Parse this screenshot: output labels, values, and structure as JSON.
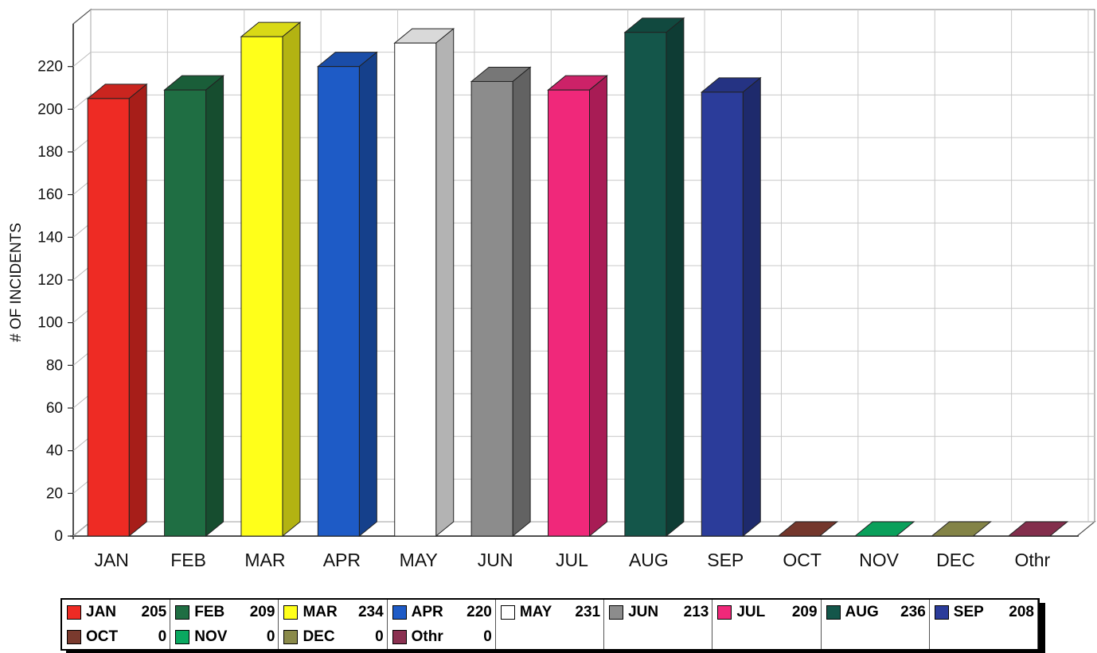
{
  "chart_data": {
    "type": "bar",
    "title": "",
    "xlabel": "",
    "ylabel": "# OF INCIDENTS",
    "ylim": [
      0,
      240
    ],
    "yticks": [
      0,
      20,
      40,
      60,
      80,
      100,
      120,
      140,
      160,
      180,
      200,
      220
    ],
    "categories": [
      "JAN",
      "FEB",
      "MAR",
      "APR",
      "MAY",
      "JUN",
      "JUL",
      "AUG",
      "SEP",
      "OCT",
      "NOV",
      "DEC",
      "Othr"
    ],
    "values": [
      205,
      209,
      234,
      220,
      231,
      213,
      209,
      236,
      208,
      0,
      0,
      0,
      0
    ],
    "colors": [
      "#ee2b24",
      "#1f6e43",
      "#ffff1a",
      "#1e5bc6",
      "#ffffff",
      "#8c8c8c",
      "#f0287a",
      "#14564a",
      "#2b3c9a",
      "#7a3a2e",
      "#0aa860",
      "#8a8a4a",
      "#8a3050"
    ],
    "grid": true,
    "legend": {
      "position": "bottom",
      "entries": [
        {
          "label": "JAN",
          "value": "205"
        },
        {
          "label": "FEB",
          "value": "209"
        },
        {
          "label": "MAR",
          "value": "234"
        },
        {
          "label": "APR",
          "value": "220"
        },
        {
          "label": "MAY",
          "value": "231"
        },
        {
          "label": "JUN",
          "value": "213"
        },
        {
          "label": "JUL",
          "value": "209"
        },
        {
          "label": "AUG",
          "value": "236"
        },
        {
          "label": "SEP",
          "value": "208"
        },
        {
          "label": "OCT",
          "value": "0"
        },
        {
          "label": "NOV",
          "value": "0"
        },
        {
          "label": "DEC",
          "value": "0"
        },
        {
          "label": "Othr",
          "value": "0"
        }
      ]
    }
  }
}
